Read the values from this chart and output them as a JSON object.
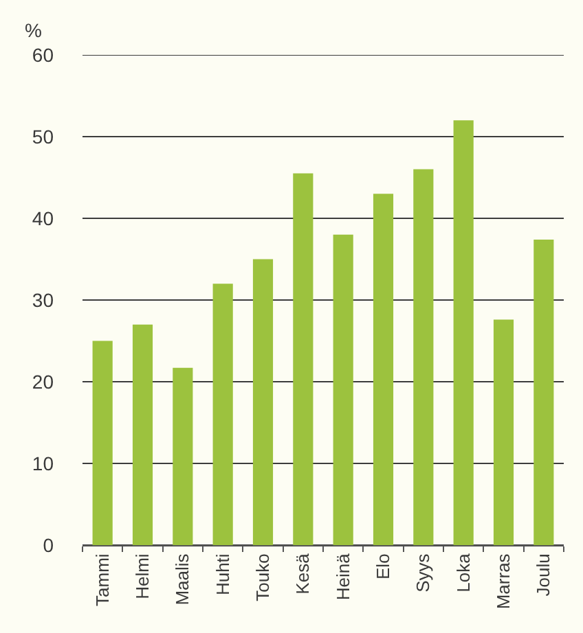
{
  "chart_data": {
    "type": "bar",
    "ylabel": "%",
    "categories": [
      "Tammi",
      "Helmi",
      "Maalis",
      "Huhti",
      "Touko",
      "Kesä",
      "Heinä",
      "Elo",
      "Syys",
      "Loka",
      "Marras",
      "Joulu"
    ],
    "values": [
      25,
      27,
      21.7,
      32,
      35,
      45.5,
      38,
      43,
      46,
      52,
      27.6,
      37.4
    ],
    "color": "#9cc23e",
    "ylim": [
      0,
      60
    ],
    "yticks": [
      0,
      10,
      20,
      30,
      40,
      50,
      60
    ],
    "grid": "y"
  }
}
